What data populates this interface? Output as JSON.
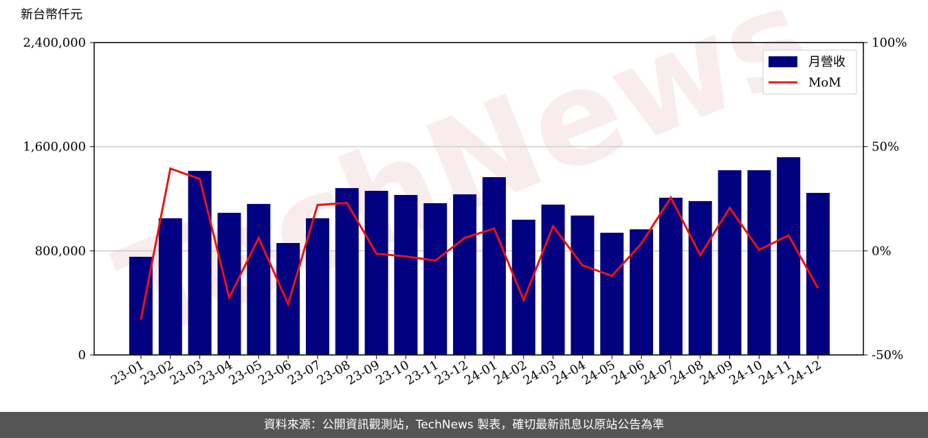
{
  "chart_data": {
    "type": "bar-line",
    "ylabel": "新台幣仟元",
    "watermark": "TechNews",
    "categories": [
      "23-01",
      "23-02",
      "23-03",
      "23-04",
      "23-05",
      "23-06",
      "23-07",
      "23-08",
      "23-09",
      "23-10",
      "23-11",
      "23-12",
      "24-01",
      "24-02",
      "24-03",
      "24-04",
      "24-05",
      "24-06",
      "24-07",
      "24-08",
      "24-09",
      "24-10",
      "24-11",
      "24-12"
    ],
    "series": [
      {
        "name": "月營收",
        "type": "bar",
        "color": "#000080",
        "values": [
          754000,
          1050000,
          1414000,
          1092000,
          1160000,
          860000,
          1050000,
          1282000,
          1261000,
          1229000,
          1166000,
          1234000,
          1366000,
          1039000,
          1155000,
          1071000,
          939000,
          965000,
          1208000,
          1182000,
          1419000,
          1419000,
          1519000,
          1245000
        ]
      },
      {
        "name": "MoM",
        "type": "line",
        "axis": "y2",
        "color": "#ee1111",
        "values": [
          -33,
          39.5,
          34.5,
          -22.5,
          6.2,
          -25.5,
          22,
          23,
          -1.4,
          -2.7,
          -4.7,
          6.2,
          10.7,
          -23.6,
          11.8,
          -7,
          -12,
          3.5,
          25.6,
          -2.1,
          20.6,
          0.5,
          7.4,
          -18
        ]
      }
    ],
    "ylim": [
      0,
      2400000
    ],
    "yticks": [
      0,
      {
        "value": 800000,
        "label": "800,000"
      },
      {
        "value": 1600000,
        "label": "1,600,000"
      },
      {
        "value": 2400000,
        "label": "2,400,000"
      }
    ],
    "y2lim": [
      -50,
      100
    ],
    "y2ticks": [
      {
        "value": -50,
        "label": "-50%"
      },
      {
        "value": 0,
        "label": "0%"
      },
      {
        "value": 50,
        "label": "50%"
      },
      {
        "value": 100,
        "label": "100%"
      }
    ],
    "grid": true,
    "legend": "upper right"
  },
  "footer": "資料來源：公開資訊觀測站，TechNews 製表，確切最新訊息以原站公告為準"
}
